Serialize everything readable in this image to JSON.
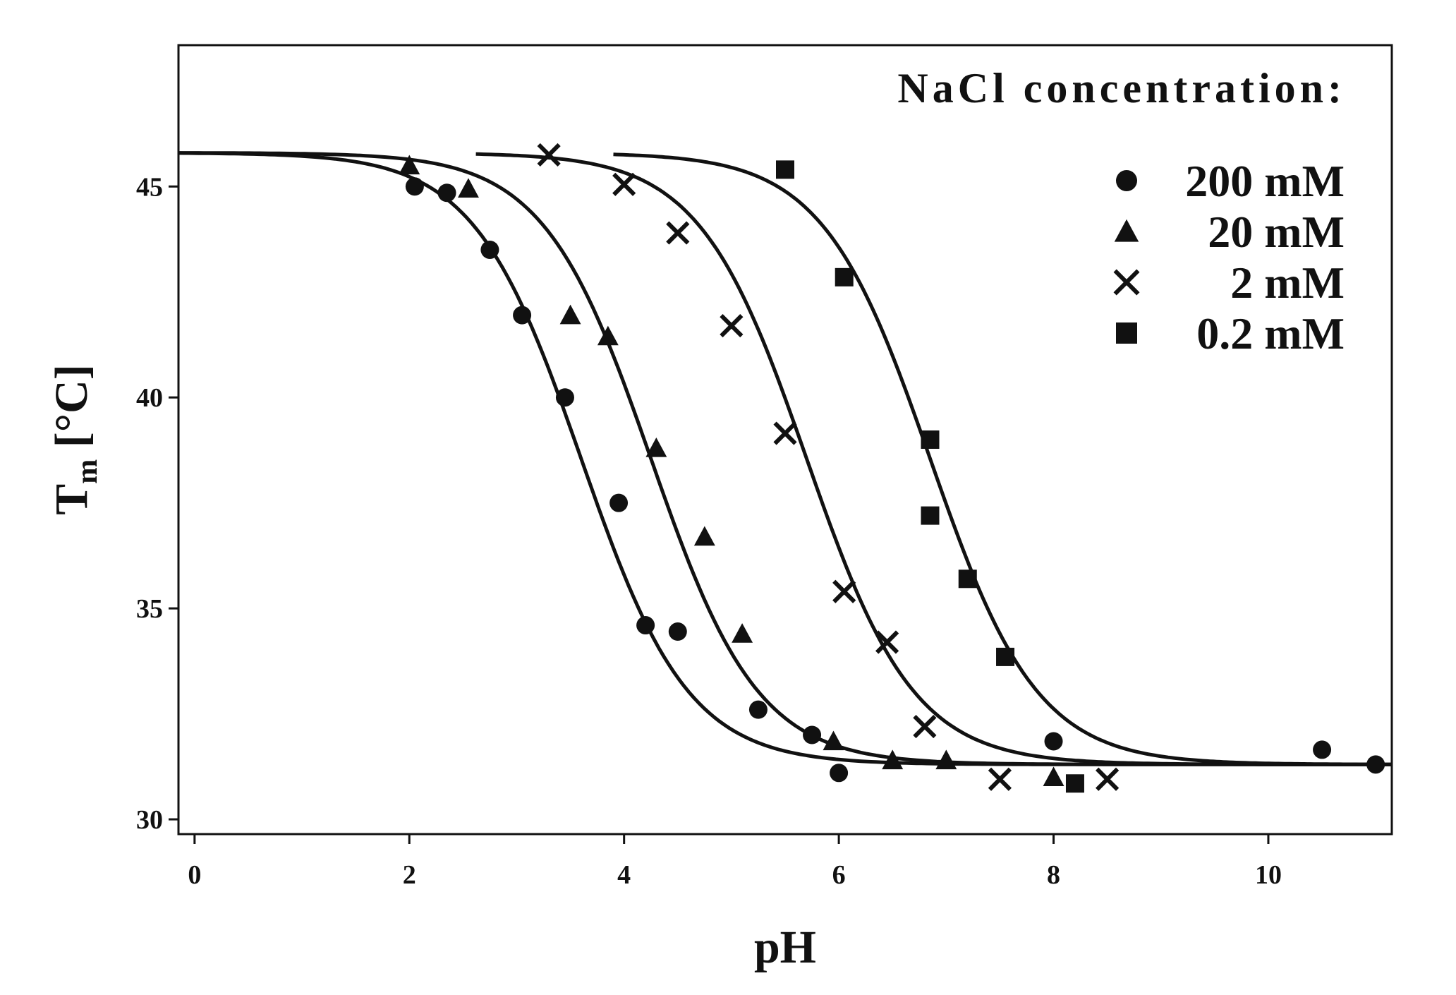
{
  "chart_data": {
    "type": "scatter",
    "xlabel": "pH",
    "ylabel_main": "T",
    "ylabel_sub": "m",
    "ylabel_unit": " [°C]",
    "xlim": [
      -0.15,
      11.15
    ],
    "ylim": [
      29.65,
      48.35
    ],
    "x_ticks": [
      0,
      2,
      4,
      6,
      8,
      10
    ],
    "y_ticks": [
      30,
      35,
      40,
      45
    ],
    "grid": false,
    "legend_title": "NaCl concentration:",
    "legend_position": "top-right",
    "series": [
      {
        "name": "200 mM",
        "marker": "circle",
        "points": [
          [
            2.05,
            45.0
          ],
          [
            2.35,
            44.85
          ],
          [
            2.75,
            43.5
          ],
          [
            3.05,
            41.95
          ],
          [
            3.45,
            40.0
          ],
          [
            3.95,
            37.5
          ],
          [
            4.2,
            34.6
          ],
          [
            4.5,
            34.45
          ],
          [
            5.25,
            32.6
          ],
          [
            5.75,
            32.0
          ],
          [
            6.0,
            31.1
          ],
          [
            8.0,
            31.85
          ],
          [
            10.5,
            31.65
          ],
          [
            11.0,
            31.3
          ]
        ],
        "fit": {
          "top": 45.8,
          "bottom": 31.3,
          "midpoint": 3.6,
          "slope": 0.5,
          "x_start": -0.15
        }
      },
      {
        "name": "20 mM",
        "marker": "triangle",
        "points": [
          [
            2.0,
            45.5
          ],
          [
            2.55,
            44.95
          ],
          [
            3.5,
            41.95
          ],
          [
            3.85,
            41.45
          ],
          [
            4.3,
            38.8
          ],
          [
            4.75,
            36.7
          ],
          [
            5.1,
            34.4
          ],
          [
            5.95,
            31.85
          ],
          [
            6.5,
            31.4
          ],
          [
            7.0,
            31.4
          ],
          [
            8.0,
            31.0
          ]
        ],
        "fit": {
          "top": 45.8,
          "bottom": 31.3,
          "midpoint": 4.25,
          "slope": 0.5,
          "x_start": -0.15
        }
      },
      {
        "name": "2 mM",
        "marker": "cross",
        "points": [
          [
            3.3,
            45.75
          ],
          [
            4.0,
            45.05
          ],
          [
            4.5,
            43.9
          ],
          [
            5.0,
            41.7
          ],
          [
            5.5,
            39.15
          ],
          [
            6.05,
            35.4
          ],
          [
            6.45,
            34.2
          ],
          [
            6.8,
            32.2
          ],
          [
            7.5,
            30.95
          ],
          [
            8.5,
            30.95
          ]
        ],
        "fit": {
          "top": 45.8,
          "bottom": 31.3,
          "midpoint": 5.7,
          "slope": 0.5,
          "x_start": 2.62
        }
      },
      {
        "name": "0.2 mM",
        "marker": "square",
        "points": [
          [
            5.5,
            45.4
          ],
          [
            6.05,
            42.85
          ],
          [
            6.85,
            39.0
          ],
          [
            6.85,
            37.2
          ],
          [
            7.2,
            35.7
          ],
          [
            7.55,
            33.85
          ],
          [
            8.2,
            30.85
          ]
        ],
        "fit": {
          "top": 45.8,
          "bottom": 31.3,
          "midpoint": 6.85,
          "slope": 0.5,
          "x_start": 3.9
        }
      }
    ]
  }
}
